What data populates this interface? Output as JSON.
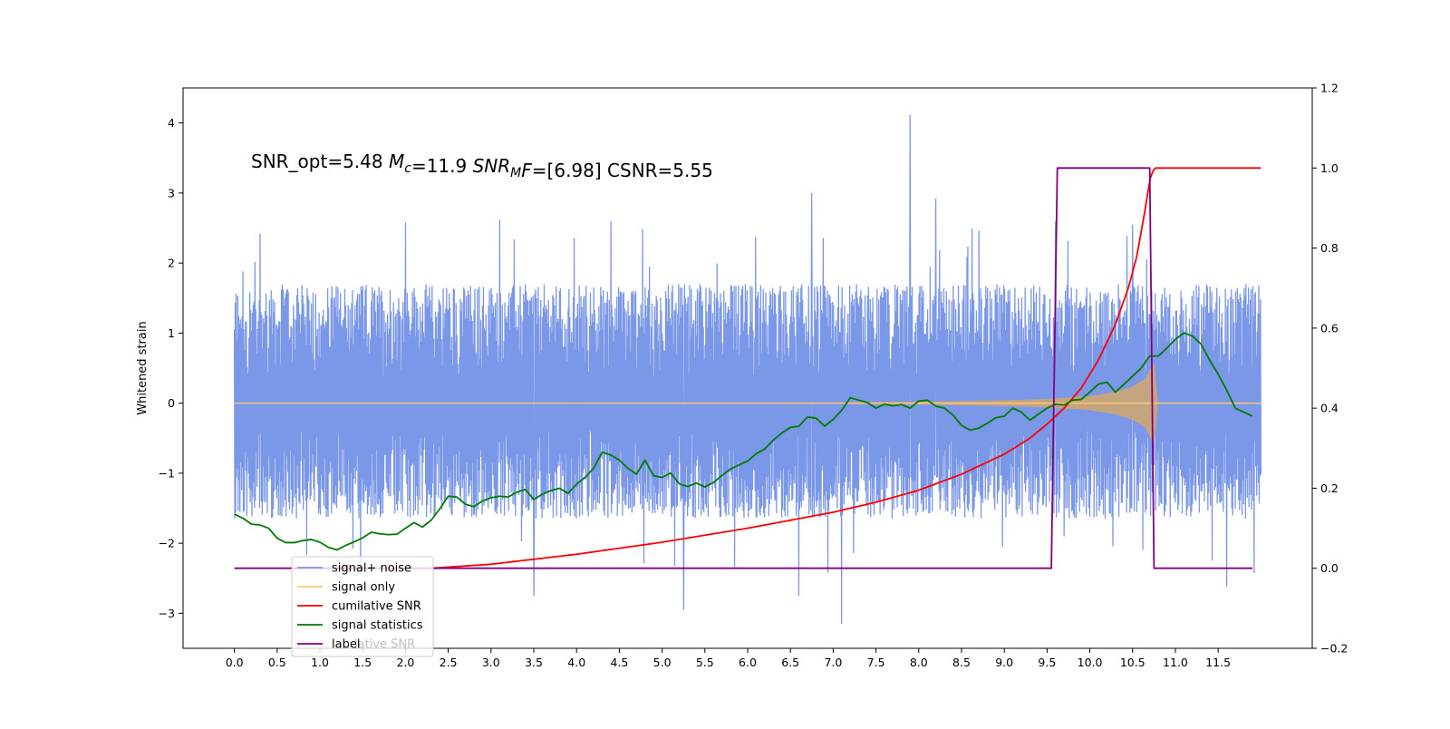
{
  "chart_data": {
    "type": "line",
    "annotation": {
      "parts": [
        {
          "text": "SNR_opt=5.48   ",
          "italic": false,
          "sub": false
        },
        {
          "text": "M",
          "italic": true,
          "sub": false
        },
        {
          "text": "c",
          "italic": true,
          "sub": true
        },
        {
          "text": "=11.9   ",
          "italic": false,
          "sub": false
        },
        {
          "text": "SNR",
          "italic": true,
          "sub": false
        },
        {
          "text": "M",
          "italic": true,
          "sub": true
        },
        {
          "text": "F",
          "italic": true,
          "sub": false
        },
        {
          "text": "=[6.98]   CSNR=5.55",
          "italic": false,
          "sub": false
        }
      ]
    },
    "ylabel": "Whitened strain",
    "xlim": [
      -0.6,
      12.6
    ],
    "ylim_left": [
      -3.5,
      4.5
    ],
    "ylim_right": [
      -0.2,
      1.2
    ],
    "x_ticks": [
      0.0,
      0.5,
      1.0,
      1.5,
      2.0,
      2.5,
      3.0,
      3.5,
      4.0,
      4.5,
      5.0,
      5.5,
      6.0,
      6.5,
      7.0,
      7.5,
      8.0,
      8.5,
      9.0,
      9.5,
      10.0,
      10.5,
      11.0,
      11.5
    ],
    "x_tick_labels": [
      "0.0",
      "0.5",
      "1.0",
      "1.5",
      "2.0",
      "2.5",
      "3.0",
      "3.5",
      "4.0",
      "4.5",
      "5.0",
      "5.5",
      "6.0",
      "6.5",
      "7.0",
      "7.5",
      "8.0",
      "8.5",
      "9.0",
      "9.5",
      "10.0",
      "10.5",
      "11.0",
      "11.5"
    ],
    "y_ticks_left": [
      4,
      3,
      2,
      1,
      0,
      -1,
      -2,
      -3
    ],
    "y_tick_labels_left": [
      "4",
      "3",
      "2",
      "1",
      "0",
      "−1",
      "−2",
      "−3"
    ],
    "y_ticks_right": [
      1.2,
      1.0,
      0.8,
      0.6,
      0.4,
      0.2,
      0.0,
      -0.2
    ],
    "y_tick_labels_right": [
      "1.2",
      "1.0",
      "0.8",
      "0.6",
      "0.4",
      "0.2",
      "0.0",
      "−0.2"
    ],
    "legend": {
      "placement": "lower-left",
      "entries": [
        {
          "label": "signal+ noise",
          "color": "#7b97e8"
        },
        {
          "label": "signal only",
          "color": "#f7c77a"
        },
        {
          "label": "cumilative SNR",
          "color": "#ff0000"
        },
        {
          "label": "signal statistics",
          "color": "#007a00"
        },
        {
          "label": "label",
          "color": "#800080"
        }
      ],
      "ghost_text": "lative SNR"
    },
    "series": [
      {
        "name": "signal+ noise",
        "axis": "left",
        "color": "#7b97e8",
        "x_range": [
          0.0,
          12.0
        ],
        "band": [
          -1.5,
          1.6
        ],
        "spikes": [
          {
            "x": 7.9,
            "y": 4.12
          },
          {
            "x": 6.75,
            "y": 3.0
          },
          {
            "x": 8.2,
            "y": 2.92
          },
          {
            "x": 7.1,
            "y": -3.15
          },
          {
            "x": 5.25,
            "y": -2.95
          },
          {
            "x": 6.6,
            "y": -2.75
          },
          {
            "x": 3.5,
            "y": -2.75
          },
          {
            "x": 11.6,
            "y": -2.62
          },
          {
            "x": 0.1,
            "y": 1.88
          },
          {
            "x": 2.0,
            "y": 2.58
          },
          {
            "x": 3.1,
            "y": 2.62
          },
          {
            "x": 4.4,
            "y": 2.6
          },
          {
            "x": 9.6,
            "y": 2.6
          },
          {
            "x": 10.5,
            "y": 2.55
          }
        ]
      },
      {
        "name": "signal only",
        "axis": "left",
        "color": "#f7c77a",
        "fill_color": "#c9a47a",
        "x": [
          0.0,
          7.0,
          8.0,
          9.0,
          9.5,
          10.0,
          10.3,
          10.5,
          10.65,
          10.75,
          10.8,
          12.0
        ],
        "amplitude": [
          0.0,
          0.01,
          0.02,
          0.04,
          0.06,
          0.1,
          0.16,
          0.24,
          0.35,
          0.6,
          0.0,
          0.0
        ]
      },
      {
        "name": "cumilative SNR",
        "axis": "right",
        "color": "#ff0000",
        "x": [
          2.3,
          3.0,
          4.0,
          5.0,
          6.0,
          7.0,
          7.5,
          8.0,
          8.5,
          9.0,
          9.3,
          9.5,
          9.7,
          9.9,
          10.1,
          10.3,
          10.45,
          10.55,
          10.65,
          10.7,
          10.75,
          12.0
        ],
        "y": [
          0.0,
          0.01,
          0.035,
          0.065,
          0.1,
          0.14,
          0.165,
          0.195,
          0.235,
          0.285,
          0.325,
          0.36,
          0.4,
          0.45,
          0.52,
          0.61,
          0.7,
          0.78,
          0.9,
          0.97,
          1.0,
          1.0
        ]
      },
      {
        "name": "signal statistics",
        "axis": "right",
        "color": "#007a00",
        "x": [
          0.0,
          0.1,
          0.2,
          0.3,
          0.4,
          0.5,
          0.6,
          0.7,
          0.8,
          0.9,
          1.0,
          1.1,
          1.2,
          1.3,
          1.4,
          1.5,
          1.6,
          1.7,
          1.8,
          1.9,
          2.0,
          2.1,
          2.2,
          2.3,
          2.4,
          2.5,
          2.6,
          2.7,
          2.8,
          2.9,
          3.0,
          3.1,
          3.2,
          3.3,
          3.4,
          3.5,
          3.6,
          3.7,
          3.8,
          3.9,
          4.0,
          4.1,
          4.2,
          4.3,
          4.4,
          4.5,
          4.6,
          4.7,
          4.8,
          4.9,
          5.0,
          5.1,
          5.2,
          5.3,
          5.4,
          5.5,
          5.6,
          5.7,
          5.8,
          5.9,
          6.0,
          6.1,
          6.2,
          6.3,
          6.4,
          6.5,
          6.6,
          6.7,
          6.8,
          6.9,
          7.0,
          7.1,
          7.2,
          7.3,
          7.4,
          7.5,
          7.6,
          7.7,
          7.8,
          7.9,
          8.0,
          8.1,
          8.2,
          8.3,
          8.4,
          8.5,
          8.6,
          8.7,
          8.8,
          8.9,
          9.0,
          9.1,
          9.2,
          9.3,
          9.4,
          9.5,
          9.6,
          9.7,
          9.8,
          9.9,
          10.0,
          10.1,
          10.2,
          10.3,
          10.4,
          10.5,
          10.6,
          10.7,
          10.8,
          10.9,
          11.0,
          11.1,
          11.2,
          11.3,
          11.4,
          11.5,
          11.6,
          11.7,
          11.8,
          11.9
        ],
        "y": [
          0.135,
          0.125,
          0.11,
          0.108,
          0.1,
          0.075,
          0.064,
          0.064,
          0.069,
          0.072,
          0.065,
          0.052,
          0.046,
          0.057,
          0.066,
          0.076,
          0.09,
          0.086,
          0.084,
          0.085,
          0.1,
          0.114,
          0.103,
          0.12,
          0.148,
          0.18,
          0.178,
          0.16,
          0.154,
          0.168,
          0.176,
          0.18,
          0.178,
          0.19,
          0.197,
          0.172,
          0.185,
          0.194,
          0.2,
          0.187,
          0.21,
          0.227,
          0.25,
          0.29,
          0.283,
          0.27,
          0.25,
          0.235,
          0.27,
          0.231,
          0.227,
          0.238,
          0.211,
          0.204,
          0.213,
          0.203,
          0.214,
          0.232,
          0.248,
          0.258,
          0.268,
          0.286,
          0.298,
          0.32,
          0.338,
          0.352,
          0.355,
          0.378,
          0.375,
          0.355,
          0.372,
          0.395,
          0.426,
          0.42,
          0.414,
          0.4,
          0.41,
          0.406,
          0.409,
          0.4,
          0.418,
          0.42,
          0.405,
          0.4,
          0.383,
          0.357,
          0.345,
          0.35,
          0.362,
          0.376,
          0.38,
          0.4,
          0.39,
          0.37,
          0.385,
          0.4,
          0.41,
          0.408,
          0.42,
          0.422,
          0.44,
          0.46,
          0.465,
          0.44,
          0.46,
          0.48,
          0.5,
          0.53,
          0.53,
          0.55,
          0.572,
          0.588,
          0.58,
          0.56,
          0.52,
          0.485,
          0.445,
          0.4,
          0.39,
          0.38
        ]
      },
      {
        "name": "label",
        "axis": "right",
        "color": "#800080",
        "x": [
          0.0,
          9.55,
          9.62,
          10.7,
          10.75,
          11.9
        ],
        "y": [
          0.0,
          0.0,
          1.0,
          1.0,
          0.0,
          0.0
        ]
      }
    ]
  }
}
